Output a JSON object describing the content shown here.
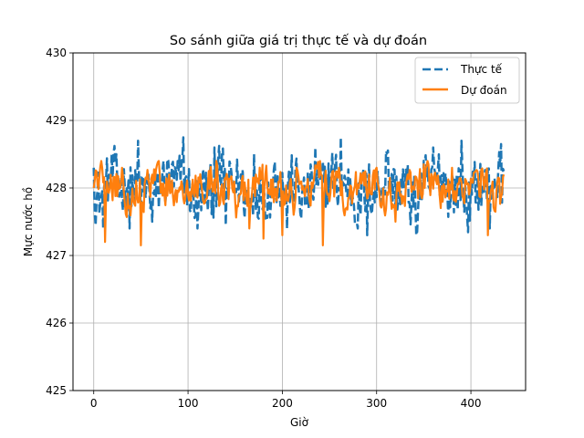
{
  "chart_data": {
    "type": "line",
    "title": "So sánh giữa giá trị thực tế và dự đoán",
    "xlabel": "Giờ",
    "ylabel": "Mực nước hồ",
    "xlim": [
      -22,
      458
    ],
    "ylim": [
      425,
      430
    ],
    "xticks": [
      0,
      100,
      200,
      300,
      400
    ],
    "yticks": [
      425,
      426,
      427,
      428,
      429,
      430
    ],
    "grid": true,
    "legend_position": "top-right",
    "n_points": 436,
    "series": [
      {
        "name": "Thực tế",
        "color": "#1f77b4",
        "style": "dashed",
        "mean": 428.0,
        "typical_range": [
          427.3,
          428.75
        ],
        "anchors": [
          [
            0,
            428.3
          ],
          [
            10,
            427.4
          ],
          [
            24,
            428.5
          ],
          [
            38,
            427.4
          ],
          [
            47,
            428.7
          ],
          [
            62,
            427.5
          ],
          [
            95,
            428.75
          ],
          [
            110,
            427.4
          ],
          [
            128,
            428.6
          ],
          [
            140,
            427.45
          ],
          [
            170,
            428.5
          ],
          [
            205,
            427.4
          ],
          [
            235,
            428.6
          ],
          [
            262,
            428.75
          ],
          [
            280,
            427.4
          ],
          [
            290,
            427.3
          ],
          [
            310,
            428.55
          ],
          [
            342,
            427.3
          ],
          [
            360,
            428.6
          ],
          [
            390,
            428.7
          ],
          [
            420,
            427.4
          ],
          [
            432,
            428.65
          ],
          [
            435,
            428.25
          ]
        ]
      },
      {
        "name": "Dự đoán",
        "color": "#ff7f0e",
        "style": "solid",
        "mean": 428.0,
        "typical_range": [
          427.5,
          428.4
        ],
        "anchors": [
          [
            0,
            428.0
          ],
          [
            12,
            427.2
          ],
          [
            30,
            428.3
          ],
          [
            50,
            427.15
          ],
          [
            80,
            428.2
          ],
          [
            100,
            427.9
          ],
          [
            130,
            428.4
          ],
          [
            165,
            427.4
          ],
          [
            180,
            427.25
          ],
          [
            200,
            427.3
          ],
          [
            215,
            428.3
          ],
          [
            243,
            427.15
          ],
          [
            260,
            428.3
          ],
          [
            300,
            428.3
          ],
          [
            320,
            427.5
          ],
          [
            350,
            428.35
          ],
          [
            380,
            428.3
          ],
          [
            405,
            428.25
          ],
          [
            418,
            427.3
          ],
          [
            435,
            428.2
          ]
        ]
      }
    ]
  }
}
